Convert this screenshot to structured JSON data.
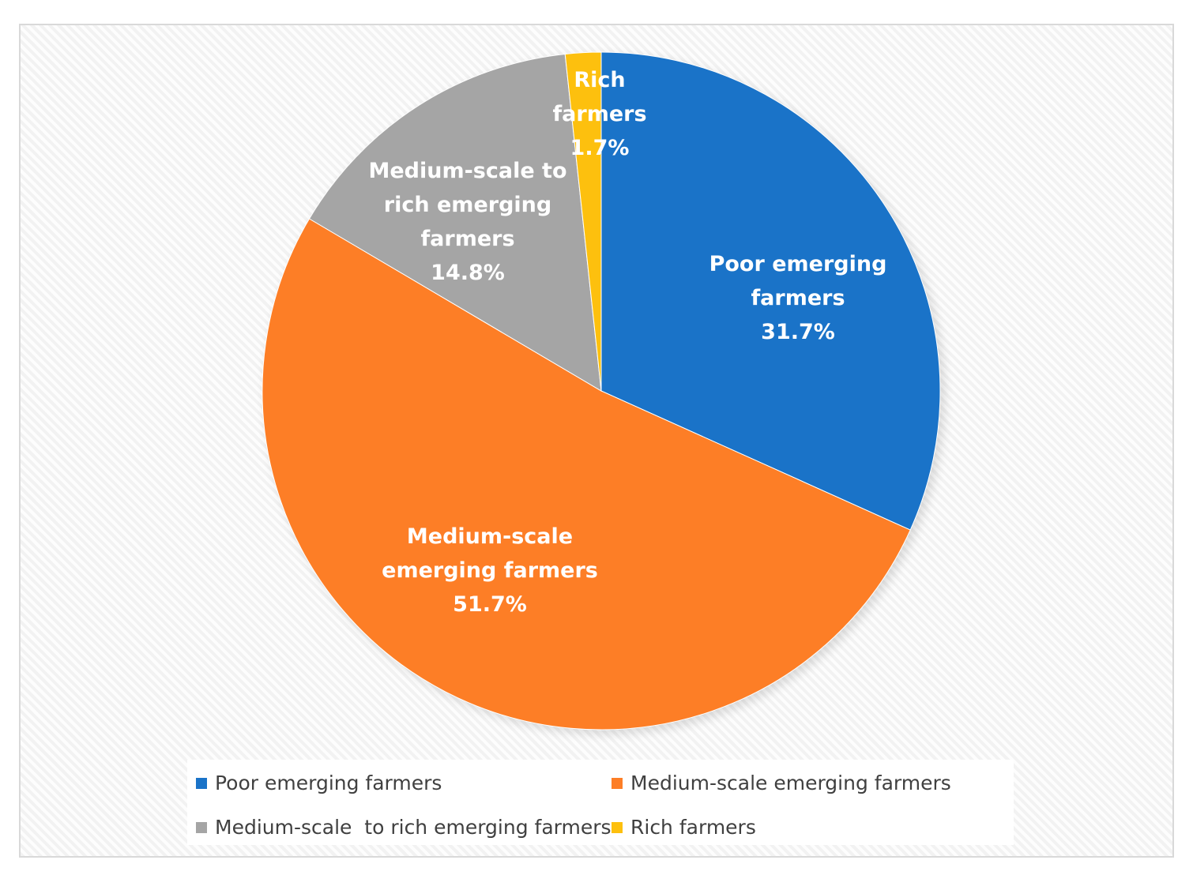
{
  "chart_data": {
    "type": "pie",
    "start_angle": "12 o'clock, clockwise",
    "slices": [
      {
        "label": "Poor emerging farmers",
        "value": 31.7,
        "data_label": [
          "Poor emerging",
          "farmers",
          "31.7%"
        ],
        "color": "#1a73c8"
      },
      {
        "label": "Medium-scale emerging farmers",
        "value": 51.7,
        "data_label": [
          "Medium-scale",
          "emerging farmers",
          "51.7%"
        ],
        "color": "#fd7e26"
      },
      {
        "label": "Medium-scale  to rich emerging farmers",
        "value": 14.8,
        "data_label": [
          "Medium-scale  to",
          "rich emerging",
          "farmers",
          "14.8%"
        ],
        "color": "#a5a5a5"
      },
      {
        "label": "Rich farmers",
        "value": 1.7,
        "data_label": [
          "Rich",
          "farmers",
          "1.7%"
        ],
        "color": "#fdc00e"
      }
    ],
    "legend_position": "bottom"
  }
}
